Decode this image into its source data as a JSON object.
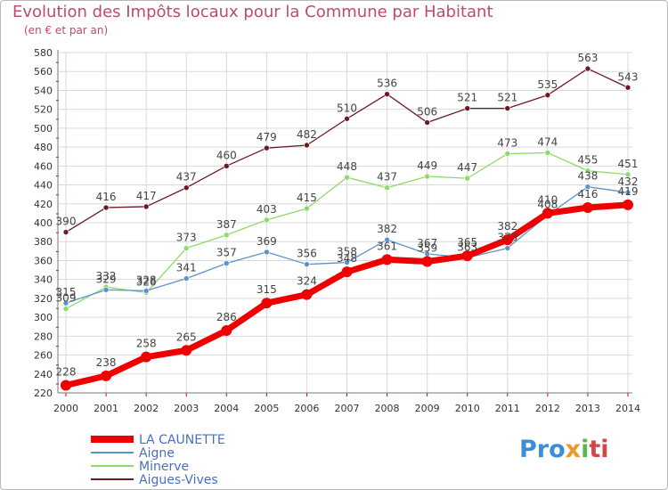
{
  "title": "Evolution des Impôts locaux pour la Commune par Habitant",
  "subtitle": "(en € et par an)",
  "logo": {
    "parts": [
      "Pro",
      "x",
      "i",
      "ti"
    ]
  },
  "colors": {
    "title": "#c04a6a",
    "axis_text": "#333333",
    "grid": "#d9d9d9",
    "axis_tick_marks": "#cc0000",
    "label_text": "#444444"
  },
  "chart_data": {
    "type": "line",
    "xlabel": "",
    "ylabel": "",
    "ylim": [
      220,
      580
    ],
    "ytick_step": 20,
    "grid": true,
    "legend_position": "bottom-left",
    "x": [
      2000,
      2001,
      2002,
      2003,
      2004,
      2005,
      2006,
      2007,
      2008,
      2009,
      2010,
      2011,
      2012,
      2013,
      2014
    ],
    "series": [
      {
        "name": "LA CAUNETTE",
        "color": "#ee0000",
        "width": 7,
        "marker": 6,
        "values": [
          228,
          238,
          258,
          265,
          286,
          315,
          324,
          348,
          361,
          359,
          365,
          382,
          410,
          416,
          419
        ]
      },
      {
        "name": "Aigne",
        "color": "#5a94c9",
        "width": 1.3,
        "marker": 3,
        "values": [
          315,
          329,
          328,
          341,
          357,
          369,
          356,
          358,
          382,
          367,
          363,
          373,
          408,
          438,
          432
        ]
      },
      {
        "name": "Minerve",
        "color": "#8fd86a",
        "width": 1.3,
        "marker": 3,
        "values": [
          309,
          332,
          326,
          373,
          387,
          403,
          415,
          448,
          437,
          449,
          447,
          473,
          474,
          455,
          451
        ]
      },
      {
        "name": "Aigues-Vives",
        "color": "#6b1a22",
        "width": 1.3,
        "marker": 3,
        "values": [
          390,
          416,
          417,
          437,
          460,
          479,
          482,
          510,
          536,
          506,
          521,
          521,
          535,
          563,
          543
        ]
      }
    ]
  }
}
